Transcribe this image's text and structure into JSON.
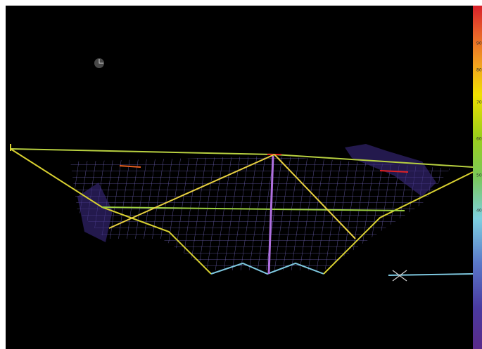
{
  "colorbar": {
    "labels": [
      "90",
      "80",
      "70",
      "60",
      "50",
      "40"
    ]
  }
}
